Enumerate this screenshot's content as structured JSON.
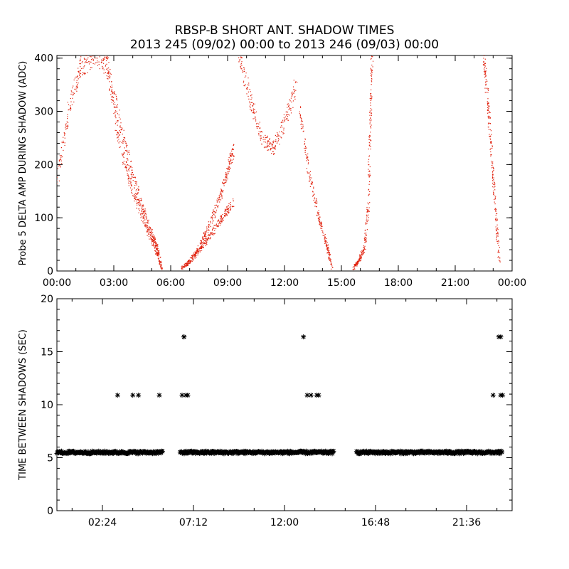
{
  "figure": {
    "title_line1": "RBSP-B SHORT ANT. SHADOW TIMES",
    "title_line2": "2013 245 (09/02) 00:00 to 2013 246 (09/03) 00:00"
  },
  "chart_data": [
    {
      "type": "scatter",
      "ylabel": "Probe 5 DELTA AMP DURING SHADOW (ADC)",
      "xlabel": "",
      "xlim_hours": [
        0,
        24
      ],
      "ylim": [
        0,
        405
      ],
      "x_ticks_hours": [
        0,
        3,
        6,
        9,
        12,
        15,
        18,
        21,
        24
      ],
      "x_tick_labels": [
        "00:00",
        "03:00",
        "06:00",
        "09:00",
        "12:00",
        "15:00",
        "18:00",
        "21:00",
        "00:00"
      ],
      "y_ticks": [
        0,
        100,
        200,
        300,
        400
      ],
      "y_tick_labels": [
        "0",
        "100",
        "200",
        "300",
        "400"
      ],
      "color": "#e0200c",
      "series": [
        {
          "branch": "early-descending-outer",
          "x_hours": [
            0.0,
            0.6,
            1.2,
            1.9,
            2.6,
            3.3,
            3.9,
            4.5,
            5.0,
            5.3,
            5.5
          ],
          "y": [
            170,
            300,
            380,
            405,
            390,
            280,
            190,
            120,
            70,
            40,
            5
          ]
        },
        {
          "branch": "early-descending-inner",
          "x_hours": [
            2.6,
            3.2,
            3.8,
            4.4,
            4.9,
            5.3
          ],
          "y": [
            400,
            260,
            170,
            110,
            65,
            30
          ]
        },
        {
          "branch": "morning-ascending-lower",
          "x_hours": [
            6.5,
            7.0,
            7.6,
            8.2,
            8.8,
            9.3
          ],
          "y": [
            5,
            20,
            45,
            75,
            105,
            130
          ]
        },
        {
          "branch": "morning-ascending-upper",
          "x_hours": [
            6.8,
            7.4,
            8.0,
            8.6,
            9.0,
            9.3
          ],
          "y": [
            10,
            40,
            85,
            140,
            190,
            230
          ]
        },
        {
          "branch": "midday-scattered-cloud",
          "x_hours": [
            9.6,
            10.2,
            10.8,
            11.4,
            12.0,
            12.6
          ],
          "y": [
            405,
            320,
            250,
            230,
            280,
            350
          ]
        },
        {
          "branch": "midday-descending",
          "x_hours": [
            12.8,
            13.3,
            13.8,
            14.2,
            14.5
          ],
          "y": [
            300,
            180,
            100,
            50,
            5
          ]
        },
        {
          "branch": "afternoon-ascending",
          "x_hours": [
            15.6,
            15.9,
            16.2,
            16.4,
            16.5,
            16.6
          ],
          "y": [
            5,
            20,
            45,
            120,
            280,
            405
          ]
        },
        {
          "branch": "late-descending",
          "x_hours": [
            22.5,
            22.7,
            22.9,
            23.1,
            23.3
          ],
          "y": [
            405,
            320,
            220,
            120,
            20
          ]
        }
      ]
    },
    {
      "type": "scatter",
      "ylabel": "TIME BETWEEN SHADOWS (SEC)",
      "xlabel": "",
      "xlim_hours": [
        0,
        24
      ],
      "ylim": [
        0,
        20
      ],
      "x_ticks_hours": [
        2.4,
        7.2,
        12.0,
        16.8,
        21.6
      ],
      "x_tick_labels": [
        "02:24",
        "07:12",
        "12:00",
        "16:48",
        "21:36"
      ],
      "y_ticks": [
        0,
        5,
        10,
        15,
        20
      ],
      "y_tick_labels": [
        "0",
        "5",
        "10",
        "15",
        "20"
      ],
      "marker": "asterisk",
      "color": "#000000",
      "baseline": {
        "value": 5.5,
        "segments_hours": [
          [
            0.0,
            5.6
          ],
          [
            6.5,
            14.6
          ],
          [
            15.8,
            23.5
          ]
        ]
      },
      "points": {
        "x_hours": [
          3.2,
          4.0,
          4.3,
          5.4,
          6.6,
          6.7,
          6.7,
          6.8,
          6.9,
          13.0,
          13.2,
          13.4,
          13.7,
          13.8,
          23.0,
          23.3,
          23.4,
          23.5,
          23.4
        ],
        "y": [
          10.9,
          10.9,
          10.9,
          10.9,
          10.9,
          16.4,
          16.4,
          10.9,
          10.9,
          16.4,
          10.9,
          10.9,
          10.9,
          10.9,
          10.9,
          16.4,
          16.4,
          10.9,
          10.9
        ]
      }
    }
  ]
}
